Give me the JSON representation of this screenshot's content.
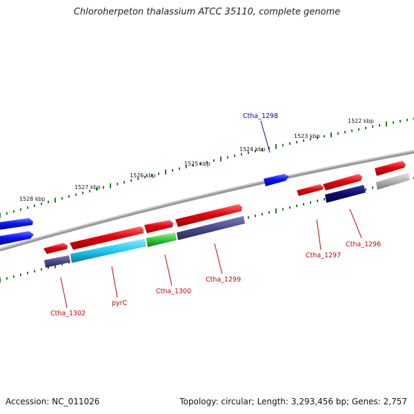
{
  "header": {
    "title": "Chloroherpeton thalassium ATCC 35110, complete genome"
  },
  "footer": {
    "accession": "Accession: NC_011026",
    "summary": "Topology: circular; Length: 3,293,456 bp; Genes: 2,757"
  },
  "colors": {
    "backbone": "#8a8a8a",
    "ticks": "#1e7a1e",
    "red_gene": "#e8000a",
    "blue_gene": "#0a14ff",
    "navy_gene": "#0a0a78",
    "slate_gene": "#4a4a8c",
    "cyan_gene": "#1ec8f0",
    "green_gene": "#32c832",
    "gray_gene": "#b4b4b4",
    "label_red": "#cc0000",
    "label_blue": "#0000cc"
  },
  "scale_labels": [
    "1528 kbp",
    "1527 kbp",
    "1526 kbp",
    "1525 kbp",
    "1524 kbp",
    "1523 kbp",
    "1522 kbp"
  ],
  "gene_labels": [
    {
      "id": "ctha_1298",
      "text": "Ctha_1298"
    },
    {
      "id": "ctha_1296",
      "text": "Ctha_1296"
    },
    {
      "id": "ctha_1297",
      "text": "Ctha_1297"
    },
    {
      "id": "ctha_1299",
      "text": "Ctha_1299"
    },
    {
      "id": "ctha_1300",
      "text": "Ctha_1300"
    },
    {
      "id": "pyrc",
      "text": "pyrC"
    },
    {
      "id": "ctha_1302",
      "text": "Ctha_1302"
    }
  ]
}
